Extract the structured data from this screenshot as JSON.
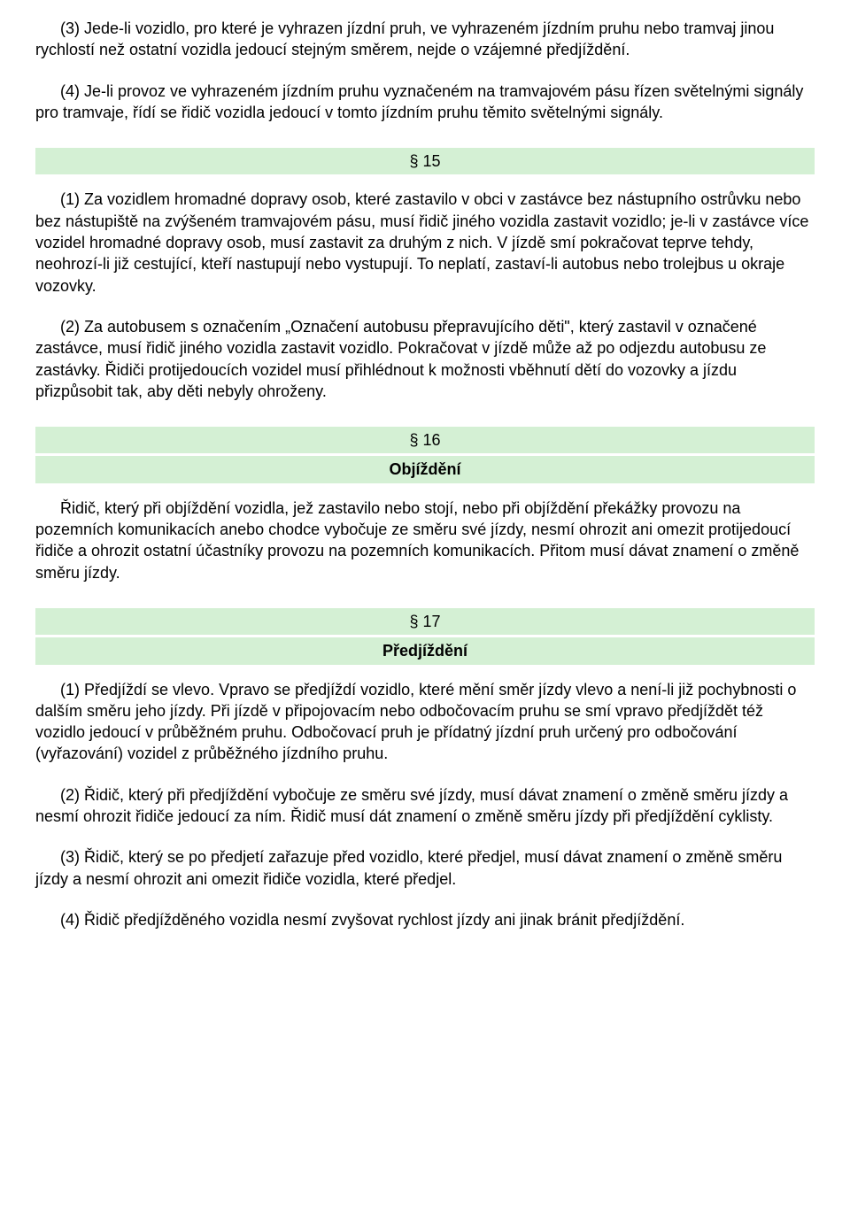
{
  "para_3": "(3) Jede-li vozidlo, pro které je vyhrazen jízdní pruh, ve vyhrazeném jízdním pruhu nebo tramvaj jinou rychlostí než ostatní vozidla jedoucí stejným směrem, nejde o vzájemné předjíždění.",
  "para_4": "(4) Je-li provoz ve vyhrazeném jízdním pruhu vyznačeném na tramvajovém pásu řízen světelnými signály pro tramvaje, řídí se řidič vozidla jedoucí v tomto jízdním pruhu těmito světelnými signály.",
  "sec15": {
    "number": "§ 15"
  },
  "sec15_p1": "(1) Za vozidlem hromadné dopravy osob, které zastavilo v obci v zastávce bez nástupního ostrůvku nebo bez nástupiště na zvýšeném tramvajovém pásu, musí řidič jiného vozidla zastavit vozidlo; je-li v zastávce více vozidel hromadné dopravy osob, musí zastavit za druhým z nich. V jízdě smí pokračovat teprve tehdy, neohrozí-li již cestující, kteří nastupují nebo vystupují. To neplatí, zastaví-li autobus nebo trolejbus u okraje vozovky.",
  "sec15_p2": "(2) Za autobusem s označením „Označení autobusu přepravujícího děti\", který zastavil v označené zastávce, musí řidič jiného vozidla zastavit vozidlo. Pokračovat v jízdě může až po odjezdu autobusu ze zastávky. Řidiči protijedoucích vozidel musí přihlédnout k možnosti vběhnutí dětí do vozovky a jízdu přizpůsobit tak, aby děti nebyly ohroženy.",
  "sec16": {
    "number": "§ 16",
    "title": "Objíždění"
  },
  "sec16_p1": "Řidič, který při objíždění vozidla, jež zastavilo nebo stojí, nebo při objíždění překážky provozu na pozemních komunikacích anebo chodce vybočuje ze směru své jízdy, nesmí ohrozit ani omezit protijedoucí řidiče a ohrozit ostatní účastníky provozu na pozemních komunikacích. Přitom musí dávat znamení o změně směru jízdy.",
  "sec17": {
    "number": "§ 17",
    "title": "Předjíždění"
  },
  "sec17_p1": "(1) Předjíždí se vlevo. Vpravo se předjíždí vozidlo, které mění směr jízdy vlevo a není-li již pochybnosti o dalším směru jeho jízdy. Při jízdě v připojovacím nebo odbočovacím pruhu se smí vpravo předjíždět též vozidlo jedoucí v průběžném pruhu. Odbočovací pruh je přídatný jízdní pruh určený pro odbočování (vyřazování) vozidel z průběžného jízdního pruhu.",
  "sec17_p2": "(2) Řidič, který při předjíždění vybočuje ze směru své jízdy, musí dávat znamení o změně směru jízdy a nesmí ohrozit řidiče jedoucí za ním. Řidič musí dát znamení o změně směru jízdy při předjíždění cyklisty.",
  "sec17_p3": "(3) Řidič, který se po předjetí zařazuje před vozidlo, které předjel, musí dávat znamení o změně směru jízdy a nesmí ohrozit ani omezit řidiče vozidla, které předjel.",
  "sec17_p4": "(4) Řidič předjížděného vozidla nesmí zvyšovat rychlost jízdy ani jinak bránit předjíždění."
}
